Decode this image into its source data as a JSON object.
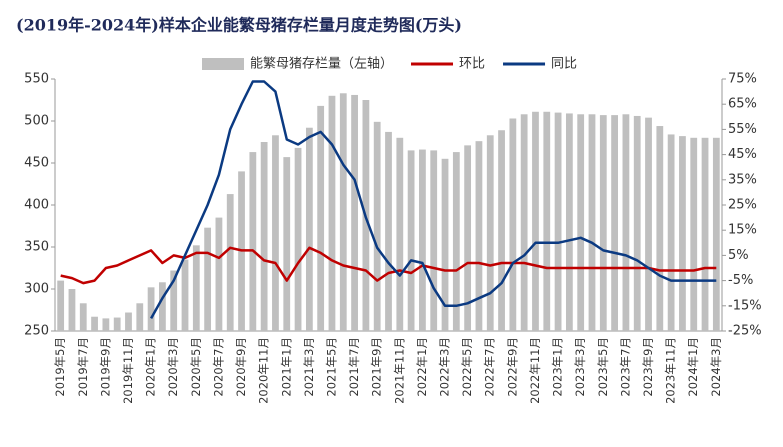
{
  "chart_data": {
    "type": "bar_line",
    "title": "(2019年-2024年)样本企业能繁母猪存栏量月度走势图(万头)",
    "categories": [
      "2019年5月",
      null,
      "2019年7月",
      null,
      "2019年9月",
      null,
      "2019年11月",
      null,
      "2020年1月",
      null,
      "2020年3月",
      null,
      "2020年5月",
      null,
      "2020年7月",
      null,
      "2020年9月",
      null,
      "2020年11月",
      null,
      "2021年1月",
      null,
      "2021年3月",
      null,
      "2021年5月",
      null,
      "2021年7月",
      null,
      "2021年9月",
      null,
      "2021年11月",
      null,
      "2022年1月",
      null,
      "2022年3月",
      null,
      "2022年5月",
      null,
      "2022年7月",
      null,
      "2022年9月",
      null,
      "2022年11月",
      null,
      "2023年1月",
      null,
      "2023年3月",
      null,
      "2023年5月",
      null,
      "2023年7月",
      null,
      "2023年9月",
      null,
      "2023年11月",
      null,
      "2024年1月",
      null,
      "2024年3月"
    ],
    "series": [
      {
        "name": "能繁母猪存栏量（左轴）",
        "color": "#bfbfbf",
        "kind": "bar",
        "values": [
          310,
          300,
          283,
          267,
          265,
          266,
          272,
          283,
          302,
          308,
          322,
          335,
          352,
          373,
          385,
          413,
          440,
          463,
          475,
          483,
          457,
          468,
          492,
          518,
          530,
          533,
          531,
          525,
          499,
          487,
          480,
          465,
          466,
          465,
          455,
          463,
          471,
          476,
          483,
          489,
          503,
          508,
          511,
          511,
          510,
          509,
          508,
          508,
          507,
          507,
          508,
          506,
          504,
          494,
          484,
          482,
          480,
          480,
          480
        ]
      },
      {
        "name": "环比",
        "color": "#c00000",
        "kind": "line",
        "axis": "y2",
        "values": [
          -3,
          -4,
          -6,
          -5,
          0,
          1,
          3,
          5,
          7,
          2,
          5,
          4,
          6,
          6,
          4,
          8,
          7,
          7,
          3,
          2,
          -5,
          2,
          8,
          6,
          3,
          1,
          0,
          -1,
          -5,
          -2,
          -1,
          -2,
          1,
          0,
          -1,
          -1,
          2,
          2,
          1,
          2,
          2,
          2,
          1,
          0,
          0,
          0,
          0,
          0,
          0,
          0,
          0,
          0,
          0,
          -1,
          -1,
          -1,
          -1,
          0,
          0
        ]
      },
      {
        "name": "同比",
        "color": "#0b3a82",
        "kind": "line",
        "axis": "y2",
        "values": [
          null,
          null,
          null,
          null,
          null,
          null,
          null,
          null,
          -20,
          -12,
          -5,
          5,
          15,
          25,
          37,
          55,
          65,
          74,
          74,
          70,
          51,
          49,
          52,
          54,
          49,
          41,
          35,
          20,
          8,
          2,
          -3,
          3,
          2,
          -8,
          -15,
          -15,
          -14,
          -12,
          -10,
          -6,
          2,
          5,
          10,
          10,
          10,
          11,
          12,
          10,
          7,
          6,
          5,
          3,
          0,
          -3,
          -5,
          -5,
          -5,
          -5,
          -5
        ]
      }
    ],
    "ylim": [
      250,
      550
    ],
    "yticks": [
      250,
      300,
      350,
      400,
      450,
      500,
      550
    ],
    "y2lim": [
      -25,
      75
    ],
    "y2ticks": [
      {
        "value": -25,
        "label": "-25%"
      },
      {
        "value": -15,
        "label": "-15%"
      },
      {
        "value": -5,
        "label": "-5%"
      },
      {
        "value": 5,
        "label": "5%"
      },
      {
        "value": 15,
        "label": "15%"
      },
      {
        "value": 25,
        "label": "25%"
      },
      {
        "value": 35,
        "label": "35%"
      },
      {
        "value": 45,
        "label": "45%"
      },
      {
        "value": 55,
        "label": "55%"
      },
      {
        "value": 65,
        "label": "65%"
      },
      {
        "value": 75,
        "label": "75%"
      }
    ],
    "legend": "top"
  }
}
